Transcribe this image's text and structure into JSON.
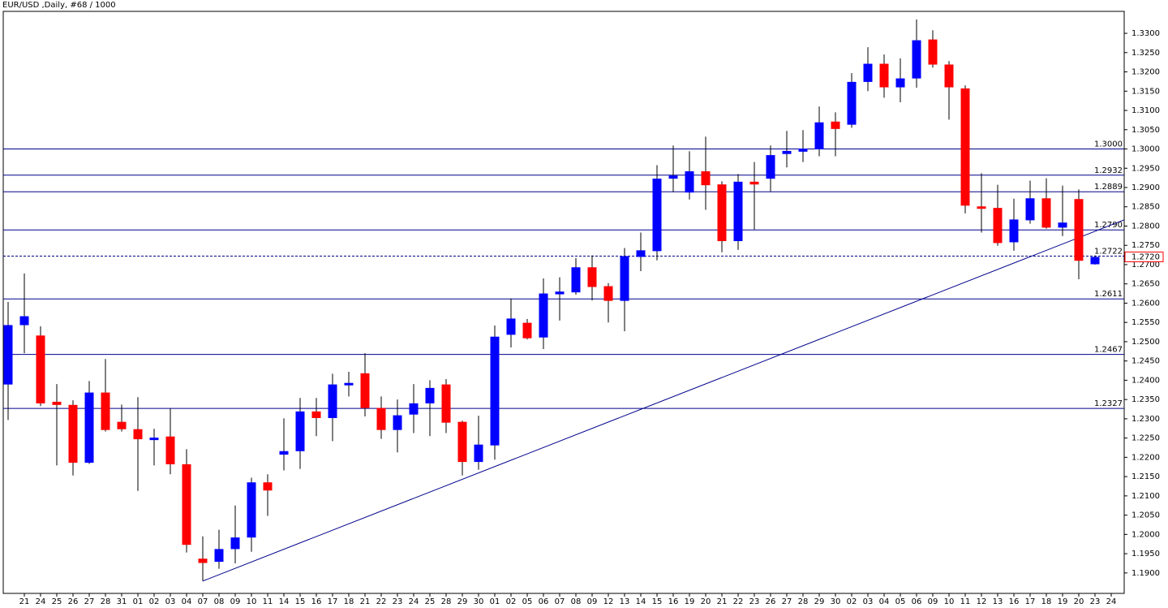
{
  "chart_data": {
    "type": "candlestick",
    "title": "EUR/USD ,Daily, #68 / 1000",
    "categories": [
      null,
      "21",
      "24",
      "25",
      "26",
      "27",
      "28",
      "31",
      "01",
      "02",
      "03",
      "04",
      "07",
      "08",
      "09",
      "10",
      "11",
      "14",
      "15",
      "16",
      "17",
      "18",
      "21",
      "22",
      "23",
      "24",
      "25",
      "28",
      "29",
      "30",
      "01",
      "02",
      "05",
      "06",
      "07",
      "08",
      "09",
      "12",
      "13",
      "14",
      "15",
      "16",
      "19",
      "20",
      "21",
      "22",
      "23",
      "26",
      "27",
      "28",
      "29",
      "30",
      "02",
      "03",
      "04",
      "05",
      "06",
      "09",
      "10",
      "11",
      "12",
      "13",
      "16",
      "17",
      "18",
      "19",
      "20",
      "23",
      "24"
    ],
    "open": [
      1.239,
      1.2544,
      1.2515,
      1.2343,
      1.2335,
      1.2187,
      1.2367,
      1.2291,
      1.2272,
      1.2247,
      1.2253,
      1.2181,
      1.1936,
      1.193,
      1.1963,
      1.1993,
      1.2134,
      1.2208,
      1.2217,
      1.2318,
      1.2303,
      1.2388,
      1.2417,
      1.2327,
      1.2272,
      1.2312,
      1.2341,
      1.2388,
      1.2291,
      1.2189,
      1.2232,
      1.2519,
      1.2548,
      1.2512,
      1.2624,
      1.2629,
      1.2692,
      1.2643,
      1.2607,
      1.2721,
      1.2736,
      1.2924,
      1.2888,
      1.2941,
      1.2907,
      1.2762,
      1.2914,
      1.2924,
      1.2988,
      1.2994,
      1.3,
      1.307,
      1.3064,
      1.3175,
      1.322,
      1.3161,
      1.3184,
      1.3283,
      1.3218,
      1.3156,
      1.285,
      1.2846,
      1.2759,
      1.2816,
      1.2871,
      1.2797,
      1.2869,
      1.2702,
      null
    ],
    "high": [
      1.2603,
      1.2677,
      1.254,
      1.239,
      1.2348,
      1.2398,
      1.2455,
      1.2337,
      1.2356,
      1.2274,
      1.2327,
      1.2221,
      1.1995,
      1.2012,
      1.2075,
      1.2147,
      1.2156,
      1.2301,
      1.2354,
      1.2354,
      1.2417,
      1.2422,
      1.247,
      1.2358,
      1.235,
      1.239,
      1.24,
      1.2403,
      1.2295,
      1.2308,
      1.2542,
      1.2612,
      1.2559,
      1.2664,
      1.2667,
      1.2717,
      1.2724,
      1.2652,
      1.2743,
      1.2783,
      1.2958,
      1.3009,
      1.2994,
      1.3032,
      1.2916,
      1.2935,
      1.2966,
      1.3009,
      1.3047,
      1.3049,
      1.311,
      1.3095,
      1.3197,
      1.3264,
      1.3245,
      1.3235,
      1.3336,
      1.3308,
      1.3228,
      1.3165,
      1.2937,
      1.2907,
      1.2871,
      1.2918,
      1.2924,
      1.2905,
      1.2895,
      1.2724,
      null
    ],
    "low": [
      1.2297,
      1.247,
      1.2333,
      1.2179,
      1.2153,
      1.2183,
      1.2267,
      1.2267,
      1.2113,
      1.2179,
      1.2156,
      1.1953,
      1.1879,
      1.1911,
      1.1925,
      1.1955,
      1.2048,
      1.2166,
      1.217,
      1.2255,
      1.2242,
      1.2358,
      1.2306,
      1.2248,
      1.2213,
      1.2263,
      1.2255,
      1.2263,
      1.2153,
      1.2168,
      1.2194,
      1.2485,
      1.2506,
      1.2481,
      1.2555,
      1.2622,
      1.2607,
      1.255,
      1.2527,
      1.2683,
      1.2711,
      1.2888,
      1.2869,
      1.2842,
      1.2732,
      1.2738,
      1.2791,
      1.289,
      1.2952,
      1.2966,
      1.2981,
      1.2981,
      1.3055,
      1.315,
      1.3133,
      1.3121,
      1.3159,
      1.3211,
      1.3076,
      1.2833,
      1.2783,
      1.2749,
      1.2736,
      1.2806,
      1.2793,
      1.2774,
      1.2662,
      1.27,
      null
    ],
    "close": [
      1.2542,
      1.2565,
      1.2341,
      1.2337,
      1.2187,
      1.2367,
      1.2272,
      1.2274,
      1.2248,
      1.225,
      1.2183,
      1.1974,
      1.1927,
      1.1961,
      1.1991,
      1.2134,
      1.2115,
      1.2215,
      1.2318,
      1.2303,
      1.2388,
      1.2392,
      1.2329,
      1.2272,
      1.2308,
      1.2339,
      1.2379,
      1.2291,
      1.2189,
      1.2232,
      1.2512,
      1.2559,
      1.251,
      1.2624,
      1.2629,
      1.2692,
      1.2643,
      1.2607,
      1.2721,
      1.2736,
      1.2922,
      1.293,
      1.2941,
      1.2907,
      1.2762,
      1.2914,
      1.2909,
      1.2983,
      1.2994,
      1.3,
      1.3068,
      1.3053,
      1.3173,
      1.322,
      1.3161,
      1.3182,
      1.3281,
      1.322,
      1.3161,
      1.2854,
      1.2846,
      1.2757,
      1.2816,
      1.2871,
      1.2797,
      1.2808,
      1.2711,
      1.2719,
      null
    ],
    "up_color": "#0000ff",
    "down_color": "#ff0000",
    "wick_color": "#000000",
    "line_color": "#00008b",
    "ylim": [
      1.1847,
      1.3357
    ],
    "yticks": [
      {
        "value": 1.19,
        "label": "1.1900"
      },
      {
        "value": 1.195,
        "label": "1.1950"
      },
      {
        "value": 1.2,
        "label": "1.2000"
      },
      {
        "value": 1.205,
        "label": "1.2050"
      },
      {
        "value": 1.21,
        "label": "1.2100"
      },
      {
        "value": 1.215,
        "label": "1.2150"
      },
      {
        "value": 1.22,
        "label": "1.2200"
      },
      {
        "value": 1.225,
        "label": "1.2250"
      },
      {
        "value": 1.23,
        "label": "1.2300"
      },
      {
        "value": 1.235,
        "label": "1.2350"
      },
      {
        "value": 1.24,
        "label": "1.2400"
      },
      {
        "value": 1.245,
        "label": "1.2450"
      },
      {
        "value": 1.25,
        "label": "1.2500"
      },
      {
        "value": 1.255,
        "label": "1.2550"
      },
      {
        "value": 1.26,
        "label": "1.2600"
      },
      {
        "value": 1.265,
        "label": "1.2650"
      },
      {
        "value": 1.27,
        "label": "1.2700"
      },
      {
        "value": 1.275,
        "label": "1.2750"
      },
      {
        "value": 1.28,
        "label": "1.2800"
      },
      {
        "value": 1.285,
        "label": "1.2850"
      },
      {
        "value": 1.29,
        "label": "1.2900"
      },
      {
        "value": 1.295,
        "label": "1.2950"
      },
      {
        "value": 1.3,
        "label": "1.3000"
      },
      {
        "value": 1.305,
        "label": "1.3050"
      },
      {
        "value": 1.31,
        "label": "1.3100"
      },
      {
        "value": 1.315,
        "label": "1.3150"
      },
      {
        "value": 1.32,
        "label": "1.3200"
      },
      {
        "value": 1.325,
        "label": "1.3250"
      },
      {
        "value": 1.33,
        "label": "1.3300"
      }
    ],
    "levels": [
      {
        "value": 1.3,
        "label": "1.3000"
      },
      {
        "value": 1.2932,
        "label": "1.2932"
      },
      {
        "value": 1.2889,
        "label": "1.2889"
      },
      {
        "value": 1.279,
        "label": "1.2790"
      },
      {
        "value": 1.2722,
        "label": "1.2722",
        "dash": true
      },
      {
        "value": 1.2611,
        "label": "1.2611"
      },
      {
        "value": 1.2467,
        "label": "1.2467"
      },
      {
        "value": 1.2327,
        "label": "1.2327"
      }
    ],
    "current_price": {
      "value": 1.272,
      "label": "1.2720"
    },
    "trendline": {
      "x": [
        12,
        66
      ],
      "y": [
        1.1879,
        1.277
      ]
    }
  }
}
